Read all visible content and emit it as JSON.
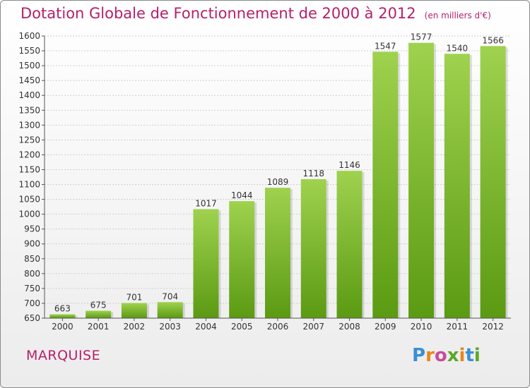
{
  "header": {
    "title": "Dotation Globale de Fonctionnement de 2000 à 2012",
    "unit": "(en milliers d'€)"
  },
  "footer": {
    "city": "MARQUISE",
    "logo": "Proxiti"
  },
  "colors": {
    "title": "#b5206b",
    "bar_light": "#9fd24e",
    "bar_dark": "#5b9a13",
    "grid": "#cfcfcf"
  },
  "chart_data": {
    "type": "bar",
    "categories": [
      "2000",
      "2001",
      "2002",
      "2003",
      "2004",
      "2005",
      "2006",
      "2007",
      "2008",
      "2009",
      "2010",
      "2011",
      "2012"
    ],
    "values": [
      663,
      675,
      701,
      704,
      1017,
      1044,
      1089,
      1118,
      1146,
      1547,
      1577,
      1540,
      1566
    ],
    "ylim": [
      650,
      1600
    ],
    "yticks": [
      650,
      700,
      750,
      800,
      850,
      900,
      950,
      1000,
      1050,
      1100,
      1150,
      1200,
      1250,
      1300,
      1350,
      1400,
      1450,
      1500,
      1550,
      1600
    ],
    "grid": true,
    "data_labels": true
  }
}
